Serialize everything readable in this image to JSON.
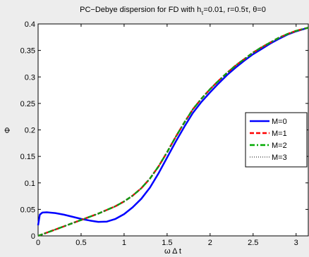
{
  "chart_data": {
    "type": "line",
    "title": {
      "main": "PC−Debye dispersion for FD with h",
      "sub": "τ",
      "rest": "=0.01, r=0.5τ, θ=0"
    },
    "xlabel": "ω Δ t",
    "ylabel": "Φ",
    "xlim": [
      0,
      3.1416
    ],
    "ylim": [
      0,
      0.4
    ],
    "x_ticks": [
      0,
      0.5,
      1,
      1.5,
      2,
      2.5,
      3
    ],
    "x_tick_labels": [
      "0",
      "0.5",
      "1",
      "1.5",
      "2",
      "2.5",
      "3"
    ],
    "y_ticks": [
      0,
      0.05,
      0.1,
      0.15,
      0.2,
      0.25,
      0.3,
      0.35,
      0.4
    ],
    "y_tick_labels": [
      "0",
      "0.05",
      "0.1",
      "0.15",
      "0.2",
      "0.25",
      "0.3",
      "0.35",
      "0.4"
    ],
    "grid": false,
    "legend_position": "right",
    "series": [
      {
        "name": "M=0",
        "color": "#0000ff",
        "style": "solid",
        "x": [
          0,
          0.02,
          0.05,
          0.1,
          0.2,
          0.3,
          0.4,
          0.5,
          0.6,
          0.7,
          0.8,
          0.9,
          1.0,
          1.1,
          1.2,
          1.3,
          1.4,
          1.5,
          1.6,
          1.7,
          1.8,
          1.9,
          2.0,
          2.1,
          2.2,
          2.3,
          2.4,
          2.5,
          2.6,
          2.7,
          2.8,
          2.9,
          3.0,
          3.1416
        ],
        "y": [
          0.02,
          0.04,
          0.044,
          0.0445,
          0.043,
          0.04,
          0.036,
          0.032,
          0.029,
          0.0265,
          0.027,
          0.032,
          0.041,
          0.054,
          0.07,
          0.091,
          0.118,
          0.148,
          0.178,
          0.206,
          0.232,
          0.253,
          0.271,
          0.288,
          0.304,
          0.318,
          0.331,
          0.343,
          0.353,
          0.363,
          0.372,
          0.38,
          0.386,
          0.393
        ]
      },
      {
        "name": "M=1",
        "color": "#ff0000",
        "style": "dashed",
        "x": [
          0,
          0.1,
          0.2,
          0.3,
          0.4,
          0.5,
          0.6,
          0.7,
          0.8,
          0.9,
          1.0,
          1.1,
          1.2,
          1.3,
          1.4,
          1.5,
          1.6,
          1.7,
          1.8,
          1.9,
          2.0,
          2.1,
          2.2,
          2.3,
          2.4,
          2.5,
          2.6,
          2.7,
          2.8,
          2.9,
          3.0,
          3.1416
        ],
        "y": [
          0.0,
          0.006,
          0.012,
          0.018,
          0.024,
          0.03,
          0.036,
          0.042,
          0.049,
          0.056,
          0.065,
          0.076,
          0.09,
          0.108,
          0.131,
          0.158,
          0.187,
          0.214,
          0.239,
          0.259,
          0.277,
          0.293,
          0.308,
          0.322,
          0.334,
          0.346,
          0.356,
          0.365,
          0.374,
          0.381,
          0.387,
          0.393
        ]
      },
      {
        "name": "M=2",
        "color": "#00aa00",
        "style": "dashdot",
        "x": [
          0,
          0.1,
          0.2,
          0.3,
          0.4,
          0.5,
          0.6,
          0.7,
          0.8,
          0.9,
          1.0,
          1.1,
          1.2,
          1.3,
          1.4,
          1.5,
          1.6,
          1.7,
          1.8,
          1.9,
          2.0,
          2.1,
          2.2,
          2.3,
          2.4,
          2.5,
          2.6,
          2.7,
          2.8,
          2.9,
          3.0,
          3.1416
        ],
        "y": [
          0.0,
          0.006,
          0.012,
          0.018,
          0.024,
          0.03,
          0.036,
          0.042,
          0.049,
          0.056,
          0.065,
          0.076,
          0.09,
          0.108,
          0.131,
          0.158,
          0.187,
          0.214,
          0.239,
          0.259,
          0.277,
          0.293,
          0.308,
          0.322,
          0.334,
          0.346,
          0.356,
          0.365,
          0.374,
          0.381,
          0.387,
          0.393
        ]
      },
      {
        "name": "M=3",
        "color": "#555555",
        "style": "dotted",
        "x": [
          0,
          0.1,
          0.2,
          0.3,
          0.4,
          0.5,
          0.6,
          0.7,
          0.8,
          0.9,
          1.0,
          1.1,
          1.2,
          1.3,
          1.4,
          1.5,
          1.6,
          1.7,
          1.8,
          1.9,
          2.0,
          2.1,
          2.2,
          2.3,
          2.4,
          2.5,
          2.6,
          2.7,
          2.8,
          2.9,
          3.0,
          3.1416
        ],
        "y": [
          0.0,
          0.006,
          0.012,
          0.018,
          0.024,
          0.03,
          0.036,
          0.042,
          0.049,
          0.056,
          0.065,
          0.076,
          0.09,
          0.108,
          0.131,
          0.158,
          0.187,
          0.214,
          0.239,
          0.259,
          0.277,
          0.293,
          0.308,
          0.322,
          0.334,
          0.346,
          0.356,
          0.365,
          0.374,
          0.381,
          0.387,
          0.393
        ]
      }
    ]
  }
}
